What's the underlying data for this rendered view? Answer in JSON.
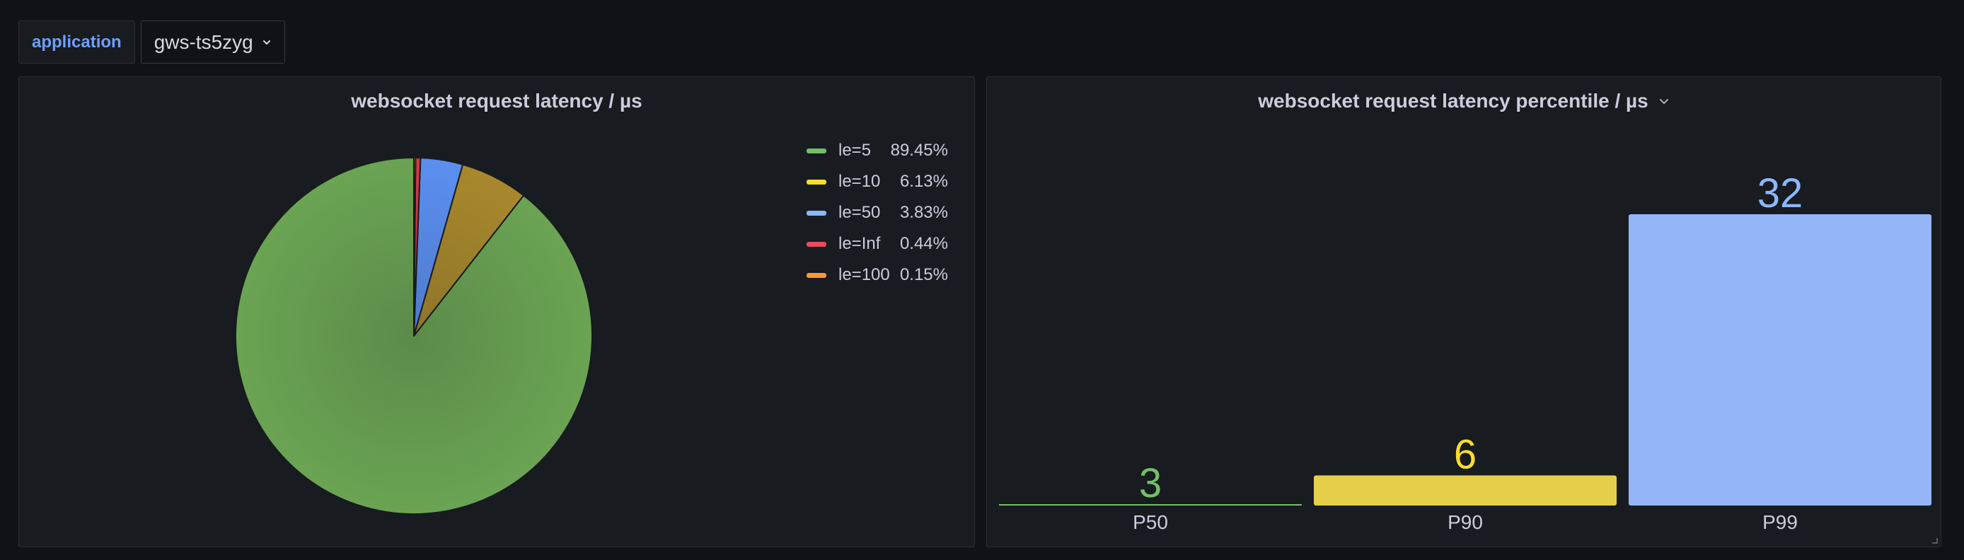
{
  "variables": {
    "label": "application",
    "selected": "gws-ts5zyg",
    "chevron_icon": "chevron-down-icon"
  },
  "left_panel": {
    "title": "websocket request latency / µs",
    "legend": [
      {
        "name": "le=5",
        "value": "89.45%",
        "color": "#73bf69"
      },
      {
        "name": "le=10",
        "value": "6.13%",
        "color": "#fade2a"
      },
      {
        "name": "le=50",
        "value": "3.83%",
        "color": "#8ab8ff"
      },
      {
        "name": "le=Inf",
        "value": "0.44%",
        "color": "#f2495c"
      },
      {
        "name": "le=100",
        "value": "0.15%",
        "color": "#ff9830"
      }
    ]
  },
  "right_panel": {
    "title": "websocket request latency percentile / µs",
    "menu_icon": "chevron-down-icon"
  },
  "chart_data": [
    {
      "type": "pie",
      "title": "websocket request latency / µs",
      "categories": [
        "le=5",
        "le=10",
        "le=50",
        "le=Inf",
        "le=100"
      ],
      "values": [
        89.45,
        6.13,
        3.83,
        0.44,
        0.15
      ],
      "colors": [
        "#6aa453",
        "#a8882c",
        "#5b8ff0",
        "#d23a48",
        "#ff9830"
      ],
      "legend": "right"
    },
    {
      "type": "bar",
      "title": "websocket request latency percentile / µs",
      "categories": [
        "P50",
        "P90",
        "P99"
      ],
      "values": [
        3,
        6,
        32
      ],
      "labels": [
        "3",
        "6",
        "32"
      ],
      "colors": [
        "#73bf69",
        "#e5cf4a",
        "#94b5f7"
      ],
      "label_colors": [
        "#73bf69",
        "#fade2a",
        "#8ab8ff"
      ],
      "ylim": [
        3,
        32
      ]
    }
  ]
}
